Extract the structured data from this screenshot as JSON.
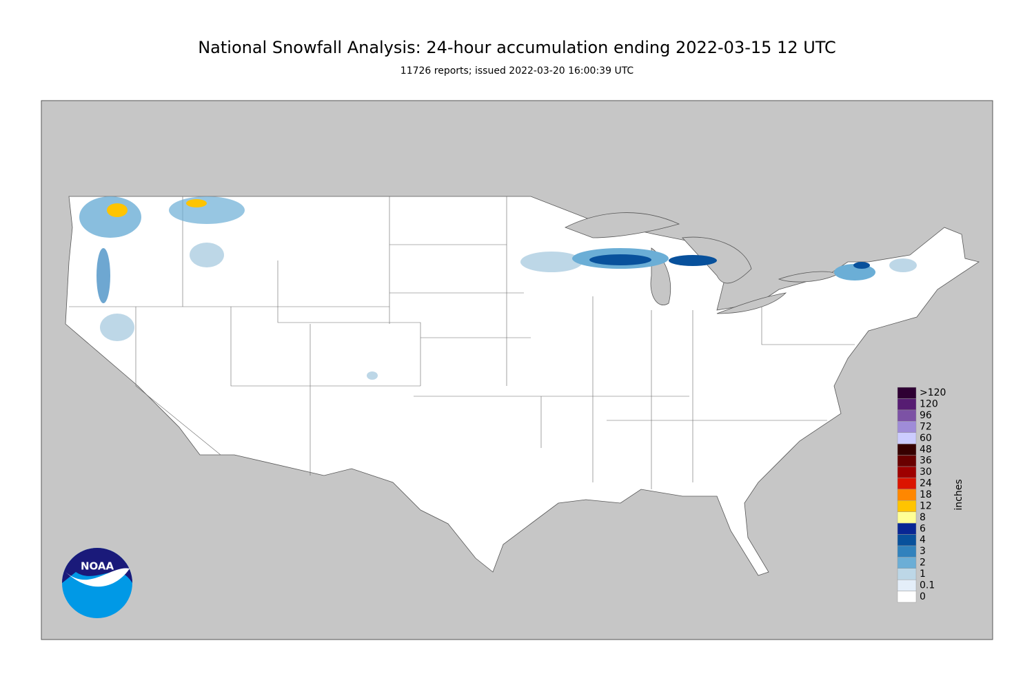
{
  "header": {
    "title": "National Snowfall Analysis: 24-hour accumulation ending 2022-03-15 12 UTC",
    "subtitle": "11726 reports; issued 2022-03-20 16:00:39 UTC"
  },
  "legend": {
    "title": "inches",
    "levels": [
      {
        "label": "0",
        "color": "#ffffff"
      },
      {
        "label": "0.1",
        "color": "#e4eef9"
      },
      {
        "label": "1",
        "color": "#bdd7e7"
      },
      {
        "label": "2",
        "color": "#6baed6"
      },
      {
        "label": "3",
        "color": "#3182bd"
      },
      {
        "label": "4",
        "color": "#08519c"
      },
      {
        "label": "6",
        "color": "#082694"
      },
      {
        "label": "8",
        "color": "#ffff96"
      },
      {
        "label": "12",
        "color": "#ffc400"
      },
      {
        "label": "18",
        "color": "#ff8700"
      },
      {
        "label": "24",
        "color": "#db1400"
      },
      {
        "label": "30",
        "color": "#9e0000"
      },
      {
        "label": "36",
        "color": "#690000"
      },
      {
        "label": "48",
        "color": "#360000"
      },
      {
        "label": "60",
        "color": "#ccccff"
      },
      {
        "label": "72",
        "color": "#9f8cd8"
      },
      {
        "label": "96",
        "color": "#7c52a5"
      },
      {
        "label": "120",
        "color": "#561c72"
      },
      {
        "label": ">120",
        "color": "#2e0033"
      }
    ]
  },
  "logo": {
    "text": "NOAA"
  }
}
